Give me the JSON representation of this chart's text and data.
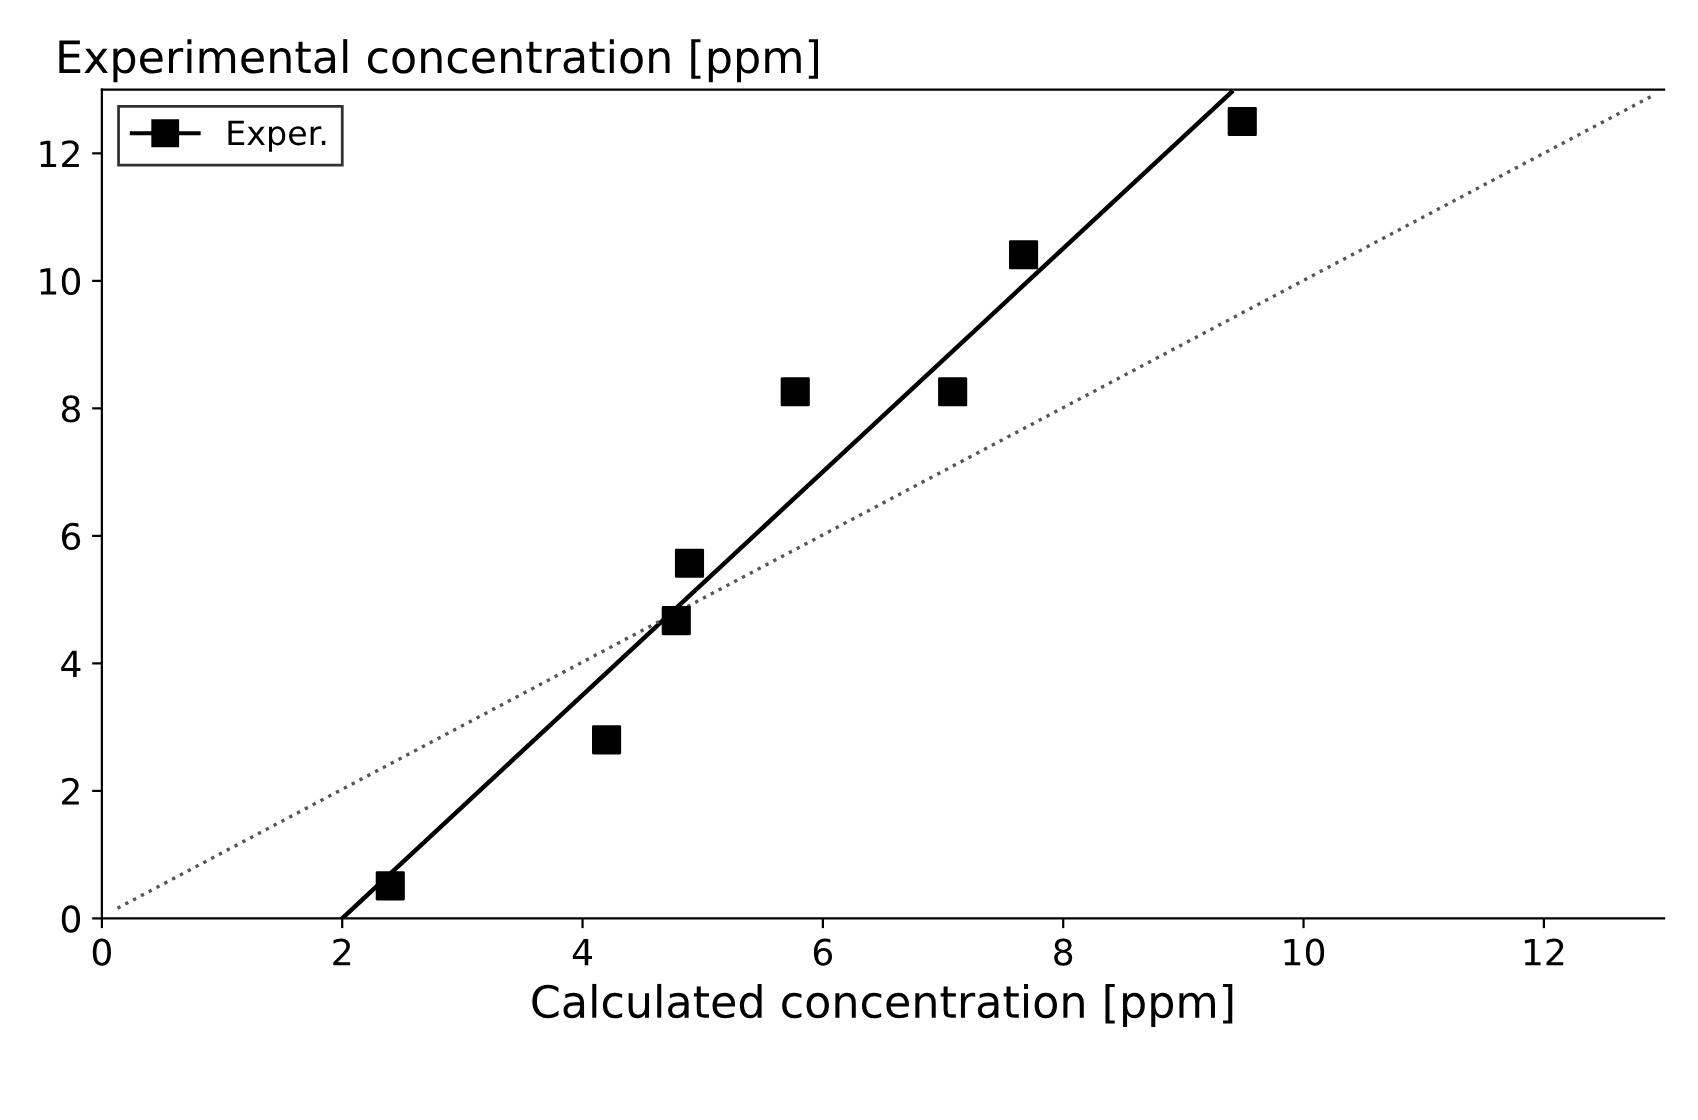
{
  "chart_data": {
    "type": "scatter",
    "ylabel": "Experimental concentration [ppm]",
    "xlabel": "Calculated concentration [ppm]",
    "xlim": [
      0,
      13
    ],
    "ylim": [
      0,
      13
    ],
    "xticks": [
      0,
      2,
      4,
      6,
      8,
      10,
      12
    ],
    "yticks": [
      0,
      2,
      4,
      6,
      8,
      10,
      12
    ],
    "grid": false,
    "legend": "top left",
    "series": [
      {
        "name": "Exper.",
        "color": "#000000",
        "marker": "square",
        "x": [
          2.4,
          4.2,
          4.78,
          4.89,
          5.77,
          7.08,
          7.67,
          9.49
        ],
        "values": [
          0.51,
          2.8,
          4.67,
          5.57,
          8.26,
          8.26,
          10.41,
          12.5
        ]
      },
      {
        "type": "line",
        "color": "#000000",
        "line_style": "solid",
        "marker": "none",
        "x": [
          2.0,
          9.4
        ],
        "values": [
          0,
          12.96
        ]
      },
      {
        "type": "line",
        "color": "#555555",
        "line_style": "dotted",
        "marker": "none",
        "x": [
          0.13,
          12.9
        ],
        "values": [
          0.16,
          12.9
        ]
      }
    ]
  }
}
